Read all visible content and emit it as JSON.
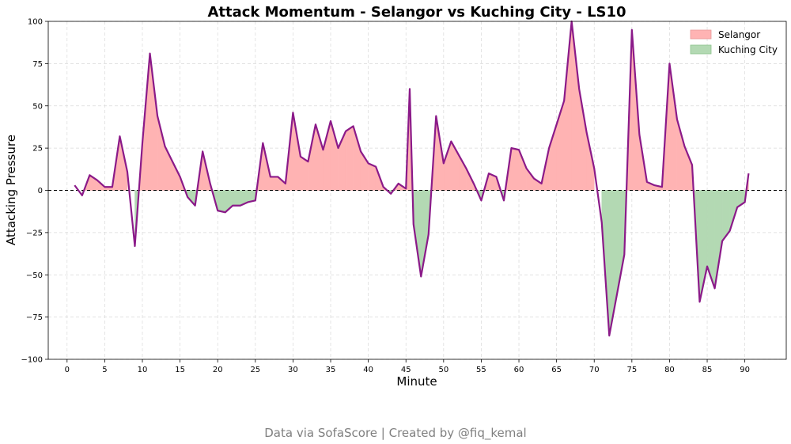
{
  "chart_data": {
    "type": "line",
    "title": "Attack Momentum - Selangor vs Kuching City - LS10",
    "xlabel": "Minute",
    "ylabel": "Attacking Pressure",
    "xlim": [
      -2.5,
      95.5
    ],
    "ylim": [
      -100,
      100
    ],
    "xticks": [
      0,
      5,
      10,
      15,
      20,
      25,
      30,
      35,
      40,
      45,
      50,
      55,
      60,
      65,
      70,
      75,
      80,
      85,
      90
    ],
    "yticks": [
      -100,
      -75,
      -50,
      -25,
      0,
      25,
      50,
      75,
      100
    ],
    "grid": true,
    "legend_position": "top-right",
    "colors": {
      "line": "#8b1a89",
      "home_fill": "#ffb3b3",
      "away_fill": "#b3d9b3",
      "grid": "#d9d9d9"
    },
    "series": [
      {
        "name": "Selangor",
        "role": "positive-fill"
      },
      {
        "name": "Kuching City",
        "role": "negative-fill"
      }
    ],
    "x": [
      1,
      2,
      3,
      4,
      5,
      6,
      7,
      8,
      9,
      10,
      11,
      12,
      13,
      14,
      15,
      16,
      17,
      18,
      19,
      20,
      21,
      22,
      23,
      24,
      25,
      26,
      27,
      28,
      29,
      30,
      31,
      32,
      33,
      34,
      35,
      36,
      37,
      38,
      39,
      40,
      41,
      42,
      43,
      44,
      45,
      45.5,
      46,
      47,
      48,
      49,
      50,
      51,
      52,
      53,
      54,
      55,
      56,
      57,
      58,
      59,
      60,
      61,
      62,
      63,
      64,
      65,
      66,
      67,
      68,
      69,
      70,
      71,
      72,
      73,
      74,
      75,
      76,
      77,
      78,
      79,
      80,
      81,
      82,
      83,
      84,
      85,
      86,
      87,
      88,
      89,
      90,
      90.5
    ],
    "y": [
      3,
      -3,
      9,
      6,
      2,
      2,
      32,
      11,
      -33,
      28,
      81,
      44,
      26,
      17,
      8,
      -4,
      -9,
      23,
      4,
      -12,
      -13,
      -9,
      -9,
      -7,
      -6,
      28,
      8,
      8,
      4,
      46,
      20,
      17,
      39,
      24,
      41,
      25,
      35,
      38,
      23,
      16,
      14,
      2,
      -2,
      4,
      1,
      60,
      -20,
      -51,
      -26,
      44,
      16,
      29,
      21,
      13,
      4,
      -6,
      10,
      8,
      -6,
      25,
      24,
      13,
      7,
      4,
      25,
      39,
      53,
      100,
      60,
      34,
      13,
      -19,
      -86,
      -62,
      -38,
      95,
      33,
      5,
      3,
      2,
      75,
      42,
      26,
      15,
      -66,
      -45,
      -58,
      -30,
      -24,
      -10,
      -7,
      10
    ],
    "fill_mask": [
      false,
      false,
      true,
      true,
      true,
      true,
      true,
      true,
      false,
      true,
      true,
      true,
      true,
      true,
      true,
      true,
      true,
      true,
      true,
      true,
      true,
      true,
      true,
      true,
      true,
      true,
      true,
      true,
      true,
      true,
      true,
      true,
      true,
      true,
      true,
      true,
      true,
      true,
      true,
      true,
      true,
      true,
      true,
      true,
      true,
      true,
      true,
      true,
      true,
      true,
      true,
      true,
      true,
      true,
      true,
      true,
      true,
      true,
      true,
      true,
      true,
      true,
      true,
      true,
      true,
      true,
      true,
      true,
      true,
      true,
      true,
      false,
      true,
      true,
      true,
      true,
      true,
      true,
      true,
      true,
      true,
      true,
      true,
      true,
      true,
      true,
      true,
      true,
      true,
      true,
      true,
      true
    ]
  },
  "footer": {
    "credit": "Data via SofaScore | Created by @fiq_kemal"
  }
}
